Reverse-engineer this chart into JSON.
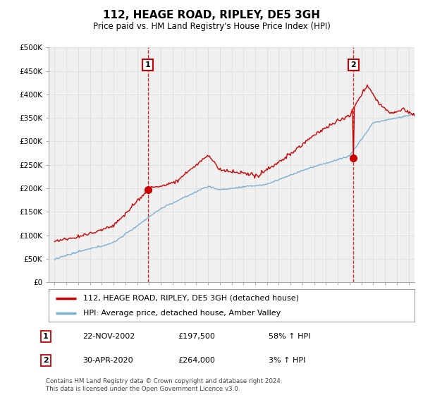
{
  "title": "112, HEAGE ROAD, RIPLEY, DE5 3GH",
  "subtitle": "Price paid vs. HM Land Registry's House Price Index (HPI)",
  "ylabel_ticks": [
    "£0",
    "£50K",
    "£100K",
    "£150K",
    "£200K",
    "£250K",
    "£300K",
    "£350K",
    "£400K",
    "£450K",
    "£500K"
  ],
  "ylim": [
    0,
    500000
  ],
  "xlim_start": 1994.5,
  "xlim_end": 2025.5,
  "sale1_date": 2002.896,
  "sale1_price": 197500,
  "sale2_date": 2020.329,
  "sale2_price": 264000,
  "legend_line1": "112, HEAGE ROAD, RIPLEY, DE5 3GH (detached house)",
  "legend_line2": "HPI: Average price, detached house, Amber Valley",
  "annotation1_label": "1",
  "annotation1_date": "22-NOV-2002",
  "annotation1_price": "£197,500",
  "annotation1_pct": "58% ↑ HPI",
  "annotation2_label": "2",
  "annotation2_date": "30-APR-2020",
  "annotation2_price": "£264,000",
  "annotation2_pct": "3% ↑ HPI",
  "footer": "Contains HM Land Registry data © Crown copyright and database right 2024.\nThis data is licensed under the Open Government Licence v3.0.",
  "red_color": "#cc0000",
  "blue_color": "#7ab0d4",
  "background_color": "#ffffff",
  "grid_color": "#dddddd",
  "plot_bg": "#f0f0f0"
}
